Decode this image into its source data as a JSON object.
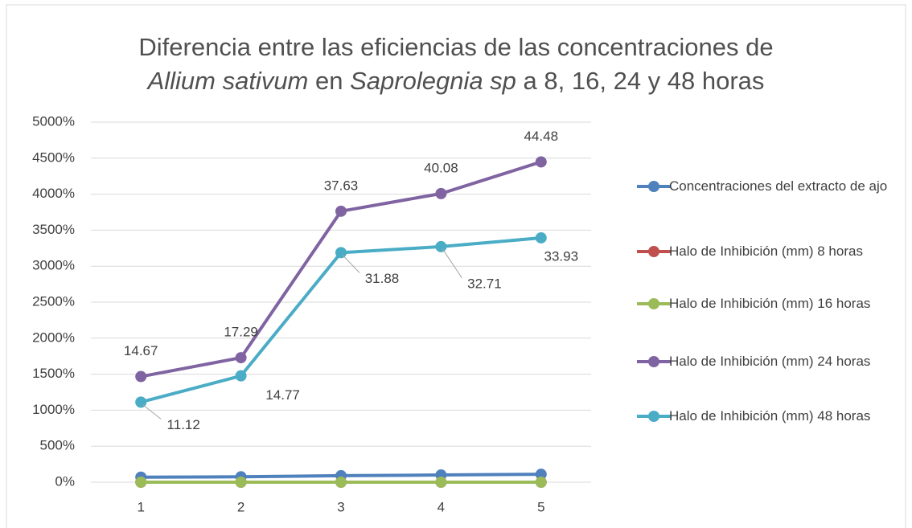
{
  "chart_data": {
    "type": "line",
    "title": [
      "Diferencia entre las eficiencias de las concentraciones de",
      "Allium sativum",
      " en ",
      "Saprolegnia sp",
      " a 8, 16, 24 y 48 horas"
    ],
    "categories": [
      "1",
      "2",
      "3",
      "4",
      "5"
    ],
    "ylim": [
      0,
      5000
    ],
    "yticks": [
      {
        "value": 0,
        "label": "0%"
      },
      {
        "value": 500,
        "label": "500%"
      },
      {
        "value": 1000,
        "label": "1000%"
      },
      {
        "value": 1500,
        "label": "1500%"
      },
      {
        "value": 2000,
        "label": "2000%"
      },
      {
        "value": 2500,
        "label": "2500%"
      },
      {
        "value": 3000,
        "label": "3000%"
      },
      {
        "value": 3500,
        "label": "3500%"
      },
      {
        "value": 4000,
        "label": "4000%"
      },
      {
        "value": 4500,
        "label": "4500%"
      },
      {
        "value": 5000,
        "label": "5000%"
      }
    ],
    "grid": true,
    "legend": "right",
    "series": [
      {
        "name": "Concentraciones del extracto de ajo",
        "color": "#4f81bd",
        "values": [
          70,
          75,
          90,
          100,
          110
        ]
      },
      {
        "name": "Halo de Inhibición (mm) 8 horas",
        "color": "#c0504d",
        "values": [
          0,
          0,
          0,
          0,
          0
        ]
      },
      {
        "name": "Halo de Inhibición (mm) 16 horas",
        "color": "#9bbb59",
        "values": [
          0,
          0,
          0,
          0,
          0
        ]
      },
      {
        "name": "Halo de Inhibición (mm) 24 horas",
        "color": "#8064a2",
        "values": [
          1467,
          1729,
          3763,
          4008,
          4448
        ],
        "value_labels": [
          "14.67",
          "17.29",
          "37.63",
          "40.08",
          "44.48"
        ]
      },
      {
        "name": "Halo de Inhibición (mm) 48 horas",
        "color": "#4bacc6",
        "values": [
          1112,
          1477,
          3188,
          3271,
          3393
        ],
        "value_labels": [
          "11.12",
          "14.77",
          "31.88",
          "32.71",
          "33.93"
        ]
      }
    ]
  }
}
